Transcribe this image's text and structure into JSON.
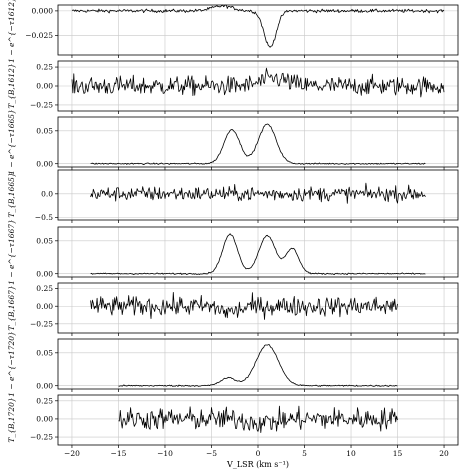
{
  "figure": {
    "xlabel": "V_LSR (km s⁻¹)",
    "x_ticks": [
      "−20",
      "−15",
      "−10",
      "−5",
      "0",
      "5",
      "10",
      "15",
      "20"
    ]
  },
  "chart_data": [
    {
      "type": "line",
      "ylabel": "1 − e^{−τ1612}",
      "xlim": [
        -21.5,
        21.5
      ],
      "ylim": [
        -0.045,
        0.006
      ],
      "yticks": [
        0.0,
        -0.025
      ],
      "ytick_labels": [
        "0.000",
        "−0.025"
      ],
      "grid": true,
      "x_range": [
        -20,
        20
      ],
      "noise": 0.0012,
      "components": [
        {
          "amp": 0.005,
          "center": -3.8,
          "sigma": 1.1
        },
        {
          "amp": -0.037,
          "center": 1.3,
          "sigma": 0.65
        }
      ]
    },
    {
      "type": "line",
      "ylabel": "T_{B,1612}",
      "xlim": [
        -21.5,
        21.5
      ],
      "ylim": [
        -0.33,
        0.33
      ],
      "yticks": [
        0.25,
        0.0,
        -0.25
      ],
      "ytick_labels": [
        "0.25",
        "0.00",
        "−0.25"
      ],
      "grid": true,
      "x_range": [
        -20,
        20
      ],
      "noise": 0.09,
      "components": [
        {
          "amp": 0.1,
          "center": 1.8,
          "sigma": 1.4
        }
      ]
    },
    {
      "type": "line",
      "ylabel": "1 − e^{−τ1665}",
      "xlim": [
        -21.5,
        21.5
      ],
      "ylim": [
        -0.005,
        0.071
      ],
      "yticks": [
        0.05,
        0.0
      ],
      "ytick_labels": [
        "0.05",
        "0.00"
      ],
      "grid": true,
      "x_range": [
        -18,
        18
      ],
      "noise": 0.0008,
      "components": [
        {
          "amp": 0.052,
          "center": -2.8,
          "sigma": 0.85
        },
        {
          "amp": 0.06,
          "center": 1.0,
          "sigma": 0.95
        }
      ]
    },
    {
      "type": "line",
      "ylabel": "T_{B,1665}",
      "xlim": [
        -21.5,
        21.5
      ],
      "ylim": [
        -0.55,
        0.5
      ],
      "yticks": [
        0.0,
        -0.5
      ],
      "ytick_labels": [
        "0.0",
        "−0.5"
      ],
      "grid": true,
      "x_range": [
        -18,
        18
      ],
      "noise": 0.11,
      "components": []
    },
    {
      "type": "line",
      "ylabel": "1 − e^{−τ1667}",
      "xlim": [
        -21.5,
        21.5
      ],
      "ylim": [
        -0.005,
        0.071
      ],
      "yticks": [
        0.05,
        0.0
      ],
      "ytick_labels": [
        "0.05",
        "0.00"
      ],
      "grid": true,
      "x_range": [
        -18,
        18
      ],
      "noise": 0.0008,
      "components": [
        {
          "amp": 0.06,
          "center": -3.0,
          "sigma": 0.8
        },
        {
          "amp": 0.058,
          "center": 1.0,
          "sigma": 0.9
        },
        {
          "amp": 0.038,
          "center": 3.7,
          "sigma": 0.7
        }
      ]
    },
    {
      "type": "line",
      "ylabel": "T_{B,1667}",
      "xlim": [
        -21.5,
        21.5
      ],
      "ylim": [
        -0.38,
        0.33
      ],
      "yticks": [
        0.25,
        0.0,
        -0.25
      ],
      "ytick_labels": [
        "0.25",
        "0.00",
        "−0.25"
      ],
      "grid": true,
      "x_range": [
        -18,
        15
      ],
      "noise": 0.1,
      "components": [
        {
          "amp": -0.08,
          "center": -3.0,
          "sigma": 1.0
        }
      ]
    },
    {
      "type": "line",
      "ylabel": "1 − e^{−τ1720}",
      "xlim": [
        -21.5,
        21.5
      ],
      "ylim": [
        -0.005,
        0.071
      ],
      "yticks": [
        0.05,
        0.0
      ],
      "ytick_labels": [
        "0.05",
        "0.00"
      ],
      "grid": true,
      "x_range": [
        -15,
        15
      ],
      "noise": 0.0008,
      "components": [
        {
          "amp": 0.012,
          "center": -3.2,
          "sigma": 0.8
        },
        {
          "amp": 0.062,
          "center": 1.0,
          "sigma": 1.2
        }
      ]
    },
    {
      "type": "line",
      "ylabel": "T_{B,1720}",
      "xlim": [
        -21.5,
        21.5
      ],
      "ylim": [
        -0.36,
        0.33
      ],
      "yticks": [
        0.25,
        0.0,
        -0.25
      ],
      "ytick_labels": [
        "0.25",
        "0.00",
        "−0.25"
      ],
      "grid": true,
      "x_range": [
        -15,
        15
      ],
      "noise": 0.11,
      "components": [
        {
          "amp": -0.05,
          "center": 0.5,
          "sigma": 1.5
        }
      ]
    }
  ]
}
